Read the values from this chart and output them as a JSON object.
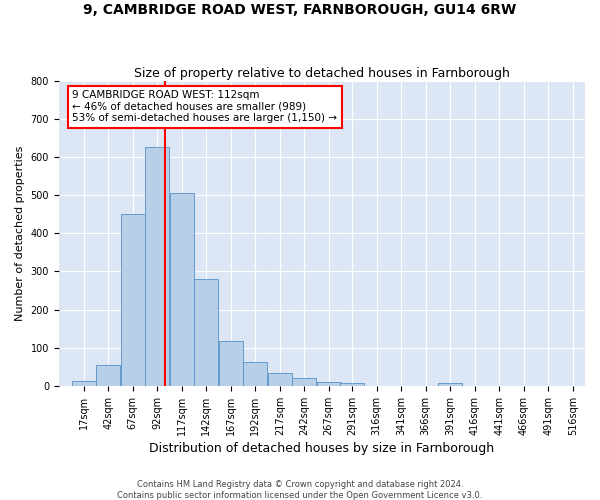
{
  "title": "9, CAMBRIDGE ROAD WEST, FARNBOROUGH, GU14 6RW",
  "subtitle": "Size of property relative to detached houses in Farnborough",
  "xlabel": "Distribution of detached houses by size in Farnborough",
  "ylabel": "Number of detached properties",
  "bin_left_edges": [
    17,
    42,
    67,
    92,
    117,
    142,
    167,
    192,
    217,
    242,
    267,
    291,
    316,
    341,
    366,
    391,
    416,
    441,
    466,
    491,
    516
  ],
  "bar_heights": [
    12,
    55,
    450,
    625,
    505,
    280,
    118,
    62,
    35,
    22,
    10,
    8,
    0,
    0,
    0,
    8,
    0,
    0,
    0,
    0,
    0
  ],
  "bar_color": "#b8cfe8",
  "bar_edge_color": "#5590c8",
  "red_line_x": 112,
  "annotation_text": "9 CAMBRIDGE ROAD WEST: 112sqm\n← 46% of detached houses are smaller (989)\n53% of semi-detached houses are larger (1,150) →",
  "annotation_box_color": "white",
  "annotation_box_edge_color": "red",
  "ylim": [
    0,
    800
  ],
  "yticks": [
    0,
    100,
    200,
    300,
    400,
    500,
    600,
    700,
    800
  ],
  "xlim_left": 4,
  "xlim_right": 541,
  "background_color": "#dce6f5",
  "grid_color": "white",
  "footer_line1": "Contains HM Land Registry data © Crown copyright and database right 2024.",
  "footer_line2": "Contains public sector information licensed under the Open Government Licence v3.0.",
  "title_fontsize": 10,
  "subtitle_fontsize": 9,
  "xlabel_fontsize": 9,
  "ylabel_fontsize": 8,
  "tick_fontsize": 7,
  "annotation_fontsize": 7.5,
  "footer_fontsize": 6
}
